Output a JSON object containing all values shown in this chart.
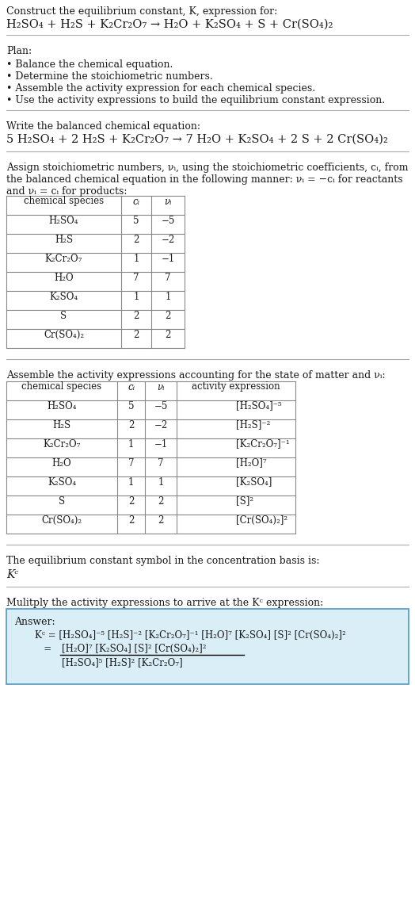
{
  "bg_color": "#ffffff",
  "text_color": "#1a1a1a",
  "table_line_color": "#888888",
  "answer_box_bg": "#daeef7",
  "answer_box_border": "#5b9ec9",
  "font_size": 9.0,
  "title_line1": "Construct the equilibrium constant, K, expression for:",
  "title_eq": "H₂SO₄ + H₂S + K₂Cr₂O₇ → H₂O + K₂SO₄ + S + Cr(SO₄)₂",
  "plan_header": "Plan:",
  "plan_items": [
    "• Balance the chemical equation.",
    "• Determine the stoichiometric numbers.",
    "• Assemble the activity expression for each chemical species.",
    "• Use the activity expressions to build the equilibrium constant expression."
  ],
  "balanced_header": "Write the balanced chemical equation:",
  "balanced_eq": "5 H₂SO₄ + 2 H₂S + K₂Cr₂O₇ → 7 H₂O + K₂SO₄ + 2 S + 2 Cr(SO₄)₂",
  "stoich_text1": "Assign stoichiometric numbers, νᵢ, using the stoichiometric coefficients, cᵢ, from",
  "stoich_text2": "the balanced chemical equation in the following manner: νᵢ = −cᵢ for reactants",
  "stoich_text3": "and νᵢ = cᵢ for products:",
  "table1_col0": "chemical species",
  "table1_col1": "cᵢ",
  "table1_col2": "νᵢ",
  "table1_rows": [
    [
      "H₂SO₄",
      "5",
      "−5"
    ],
    [
      "H₂S",
      "2",
      "−2"
    ],
    [
      "K₂Cr₂O₇",
      "1",
      "−1"
    ],
    [
      "H₂O",
      "7",
      "7"
    ],
    [
      "K₂SO₄",
      "1",
      "1"
    ],
    [
      "S",
      "2",
      "2"
    ],
    [
      "Cr(SO₄)₂",
      "2",
      "2"
    ]
  ],
  "activity_text": "Assemble the activity expressions accounting for the state of matter and νᵢ:",
  "table2_col0": "chemical species",
  "table2_col1": "cᵢ",
  "table2_col2": "νᵢ",
  "table2_col3": "activity expression",
  "table2_rows": [
    [
      "H₂SO₄",
      "5",
      "−5",
      "[H₂SO₄]⁻⁵"
    ],
    [
      "H₂S",
      "2",
      "−2",
      "[H₂S]⁻²"
    ],
    [
      "K₂Cr₂O₇",
      "1",
      "−1",
      "[K₂Cr₂O₇]⁻¹"
    ],
    [
      "H₂O",
      "7",
      "7",
      "[H₂O]⁷"
    ],
    [
      "K₂SO₄",
      "1",
      "1",
      "[K₂SO₄]"
    ],
    [
      "S",
      "2",
      "2",
      "[S]²"
    ],
    [
      "Cr(SO₄)₂",
      "2",
      "2",
      "[Cr(SO₄)₂]²"
    ]
  ],
  "kc_text": "The equilibrium constant symbol in the concentration basis is:",
  "kc_symbol": "Kᶜ",
  "multiply_text": "Mulitply the activity expressions to arrive at the Kᶜ expression:",
  "answer_label": "Answer:",
  "ans_line1": "Kᶜ = [H₂SO₄]⁻⁵ [H₂S]⁻² [K₂Cr₂O₇]⁻¹ [H₂O]⁷ [K₂SO₄] [S]² [Cr(SO₄)₂]²",
  "ans_eq_prefix": "   =",
  "ans_num": "[H₂O]⁷ [K₂SO₄] [S]² [Cr(SO₄)₂]²",
  "ans_den": "[H₂SO₄]⁵ [H₂S]² [K₂Cr₂O₇]"
}
